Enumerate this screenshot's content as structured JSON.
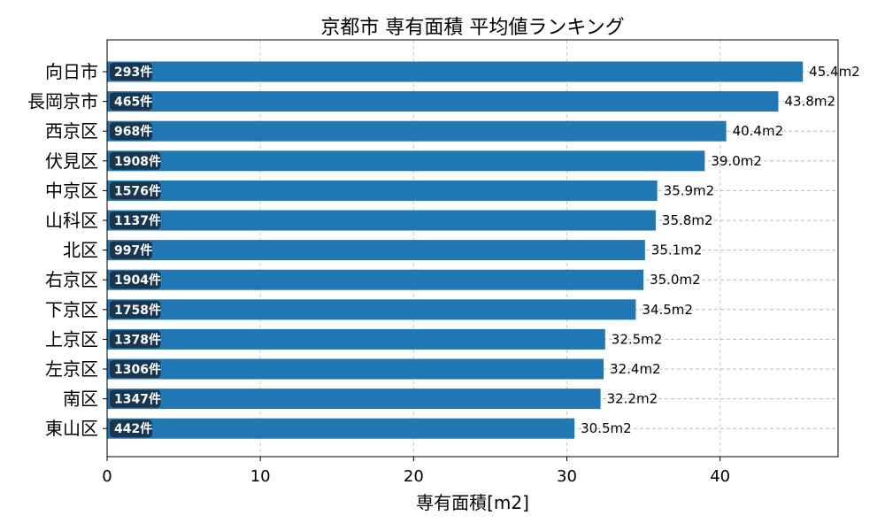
{
  "chart_data": {
    "type": "bar",
    "orientation": "horizontal",
    "title": "京都市 専有面積 平均値ランキング",
    "xlabel": "専有面積[m2]",
    "ylabel": "",
    "xlim": [
      0,
      47.7
    ],
    "xticks": [
      0,
      10,
      20,
      30,
      40
    ],
    "grid": true,
    "bar_color": "#1f77b4",
    "badge_color": "#17364f",
    "value_suffix": "m2",
    "count_suffix": "件",
    "categories": [
      "向日市",
      "長岡京市",
      "西京区",
      "伏見区",
      "中京区",
      "山科区",
      "北区",
      "右京区",
      "下京区",
      "上京区",
      "左京区",
      "南区",
      "東山区"
    ],
    "values": [
      45.4,
      43.8,
      40.4,
      39.0,
      35.9,
      35.8,
      35.1,
      35.0,
      34.5,
      32.5,
      32.4,
      32.2,
      30.5
    ],
    "value_labels": [
      "45.4m2",
      "43.8m2",
      "40.4m2",
      "39.0m2",
      "35.9m2",
      "35.8m2",
      "35.1m2",
      "35.0m2",
      "34.5m2",
      "32.5m2",
      "32.4m2",
      "32.2m2",
      "30.5m2"
    ],
    "counts": [
      "293件",
      "465件",
      "968件",
      "1908件",
      "1576件",
      "1137件",
      "997件",
      "1904件",
      "1758件",
      "1378件",
      "1306件",
      "1347件",
      "442件"
    ]
  }
}
